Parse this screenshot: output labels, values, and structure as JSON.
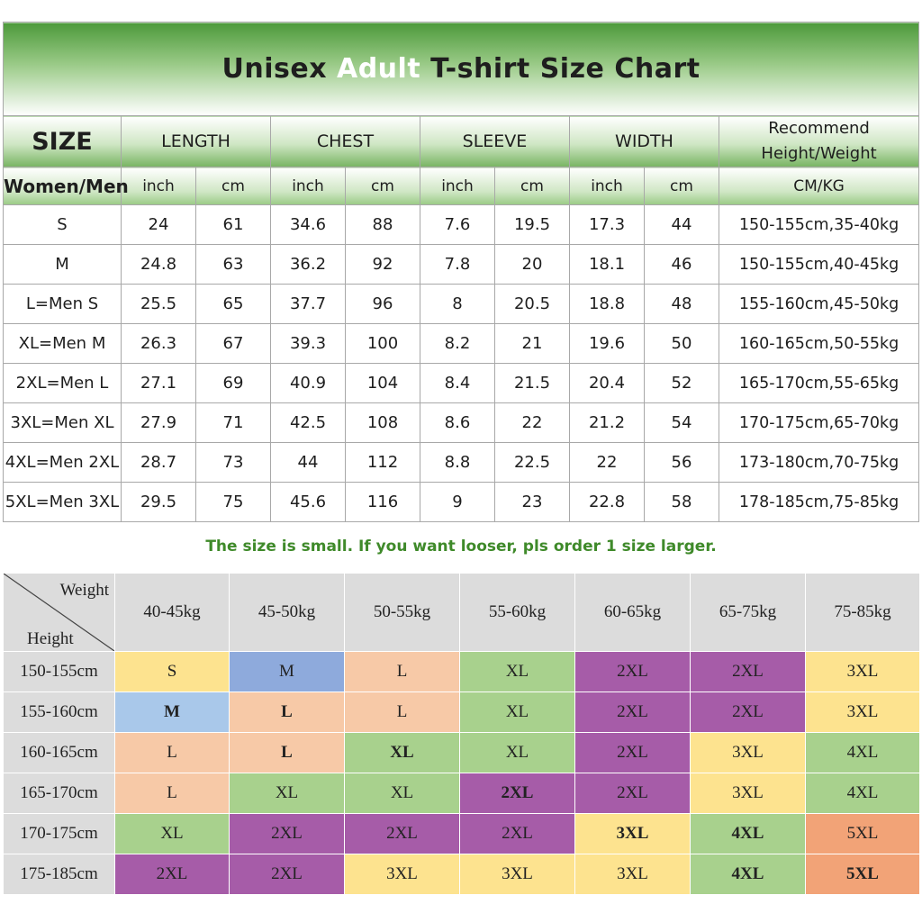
{
  "size_table": {
    "title_pre": "Unisex ",
    "title_accent": "Adult",
    "title_post": " T-shirt Size Chart",
    "headers": {
      "size": "SIZE",
      "length": "LENGTH",
      "chest": "CHEST",
      "sleeve": "SLEEVE",
      "width": "WIDTH",
      "recommend_line1": "Recommend",
      "recommend_line2": "Height/Weight"
    },
    "units": {
      "women_men": "Women/Men",
      "inch": "inch",
      "cm": "cm",
      "cm_kg": "CM/KG"
    },
    "rows": [
      [
        "S",
        "24",
        "61",
        "34.6",
        "88",
        "7.6",
        "19.5",
        "17.3",
        "44",
        "150-155cm,35-40kg"
      ],
      [
        "M",
        "24.8",
        "63",
        "36.2",
        "92",
        "7.8",
        "20",
        "18.1",
        "46",
        "150-155cm,40-45kg"
      ],
      [
        "L=Men S",
        "25.5",
        "65",
        "37.7",
        "96",
        "8",
        "20.5",
        "18.8",
        "48",
        "155-160cm,45-50kg"
      ],
      [
        "XL=Men M",
        "26.3",
        "67",
        "39.3",
        "100",
        "8.2",
        "21",
        "19.6",
        "50",
        "160-165cm,50-55kg"
      ],
      [
        "2XL=Men L",
        "27.1",
        "69",
        "40.9",
        "104",
        "8.4",
        "21.5",
        "20.4",
        "52",
        "165-170cm,55-65kg"
      ],
      [
        "3XL=Men XL",
        "27.9",
        "71",
        "42.5",
        "108",
        "8.6",
        "22",
        "21.2",
        "54",
        "170-175cm,65-70kg"
      ],
      [
        "4XL=Men 2XL",
        "28.7",
        "73",
        "44",
        "112",
        "8.8",
        "22.5",
        "22",
        "56",
        "173-180cm,70-75kg"
      ],
      [
        "5XL=Men 3XL",
        "29.5",
        "75",
        "45.6",
        "116",
        "9",
        "23",
        "22.8",
        "58",
        "178-185cm,75-85kg"
      ]
    ],
    "note": "The size is small. If you want looser, pls order 1 size larger."
  },
  "weight_height_table": {
    "corner_weight": "Weight",
    "corner_height": "Height",
    "weights": [
      "40-45kg",
      "45-50kg",
      "50-55kg",
      "55-60kg",
      "60-65kg",
      "65-75kg",
      "75-85kg"
    ],
    "heights": [
      "150-155cm",
      "155-160cm",
      "160-165cm",
      "165-170cm",
      "170-175cm",
      "175-185cm"
    ],
    "cells": [
      [
        "S",
        "M",
        "L",
        "XL",
        "2XL",
        "2XL",
        "3XL"
      ],
      [
        "M",
        "L",
        "L",
        "XL",
        "2XL",
        "2XL",
        "3XL"
      ],
      [
        "L",
        "L",
        "XL",
        "XL",
        "2XL",
        "3XL",
        "4XL"
      ],
      [
        "L",
        "XL",
        "XL",
        "2XL",
        "2XL",
        "3XL",
        "4XL"
      ],
      [
        "XL",
        "2XL",
        "2XL",
        "2XL",
        "3XL",
        "4XL",
        "5XL"
      ],
      [
        "2XL",
        "2XL",
        "3XL",
        "3XL",
        "3XL",
        "4XL",
        "5XL"
      ]
    ],
    "size_colors": {
      "S": "#fde38f",
      "M": "#a9c8ea",
      "M_alt": "#8eaadc",
      "L": "#f7c9a7",
      "XL": "#a8d18d",
      "2XL": "#a65ca8",
      "3XL": "#fde38f",
      "4XL": "#a8d18d",
      "5XL": "#f2a377"
    }
  }
}
